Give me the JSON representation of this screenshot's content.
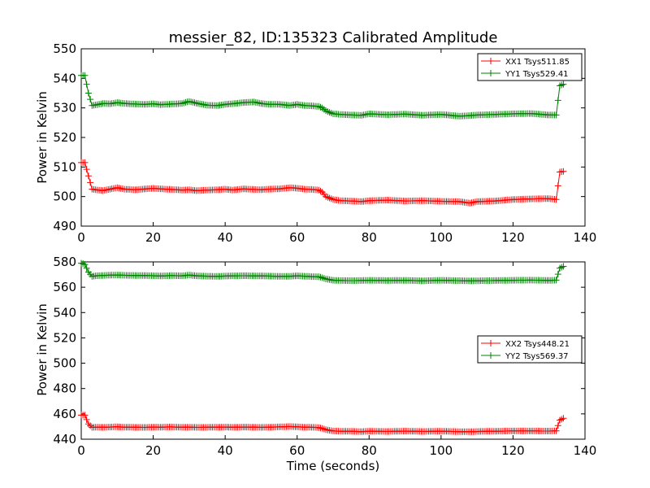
{
  "chart_data": [
    {
      "type": "line",
      "title": "messier_82, ID:135323 Calibrated Amplitude",
      "xlabel": "",
      "ylabel": "Power in Kelvin",
      "xlim": [
        0,
        140
      ],
      "ylim": [
        490,
        550
      ],
      "xticks": [
        "0",
        "20",
        "40",
        "60",
        "80",
        "100",
        "120",
        "140"
      ],
      "yticks": [
        "490",
        "500",
        "510",
        "520",
        "530",
        "540",
        "550"
      ],
      "legend_position": "top-right",
      "grid": false,
      "series": [
        {
          "name": "XX1 Tsys511.85",
          "color": "#ff0000",
          "x": [
            0,
            1,
            2,
            3,
            4,
            6,
            8,
            10,
            12,
            15,
            18,
            20,
            22,
            25,
            28,
            30,
            32,
            35,
            38,
            40,
            42,
            45,
            48,
            50,
            52,
            55,
            58,
            60,
            62,
            64,
            66,
            67,
            68,
            69,
            70,
            72,
            75,
            78,
            80,
            85,
            90,
            95,
            100,
            105,
            108,
            110,
            115,
            120,
            125,
            130,
            132,
            133,
            134
          ],
          "y": [
            511.5,
            511.5,
            507,
            502.5,
            502.3,
            502,
            502.5,
            503,
            502.5,
            502.3,
            502.6,
            502.8,
            502.6,
            502.4,
            502.2,
            502.3,
            502,
            502.2,
            502.3,
            502.5,
            502.2,
            502.6,
            502.4,
            502.3,
            502.5,
            502.6,
            503,
            502.8,
            502.5,
            502.4,
            502.2,
            501.5,
            500,
            499.5,
            499,
            498.6,
            498.5,
            498.3,
            498.6,
            498.8,
            498.5,
            498.6,
            498.4,
            498.3,
            497.8,
            498.3,
            498.5,
            499,
            499.2,
            499.3,
            499,
            508.3,
            508.5
          ]
        },
        {
          "name": "YY1 Tsys529.41",
          "color": "#008000",
          "x": [
            0,
            1,
            2,
            3,
            4,
            6,
            8,
            10,
            12,
            15,
            18,
            20,
            22,
            25,
            28,
            30,
            32,
            35,
            38,
            40,
            42,
            45,
            48,
            50,
            52,
            55,
            58,
            60,
            62,
            64,
            66,
            67,
            68,
            69,
            70,
            72,
            75,
            78,
            80,
            85,
            90,
            95,
            100,
            105,
            108,
            110,
            115,
            120,
            125,
            130,
            132,
            133,
            134
          ],
          "y": [
            541,
            541,
            535,
            530.8,
            531,
            531.5,
            531.4,
            531.8,
            531.5,
            531.3,
            531.2,
            531.4,
            531.1,
            531.3,
            531.5,
            532.2,
            531.6,
            530.9,
            530.8,
            531.2,
            531.4,
            531.8,
            532,
            531.5,
            531.2,
            531.2,
            530.8,
            531.2,
            530.8,
            530.7,
            530.5,
            530,
            529,
            528.5,
            528,
            527.8,
            527.6,
            527.5,
            528,
            527.7,
            527.9,
            527.5,
            527.8,
            527.2,
            527.4,
            527.6,
            527.8,
            528,
            528.1,
            527.6,
            527.6,
            537.5,
            538
          ]
        }
      ]
    },
    {
      "type": "line",
      "title": "",
      "xlabel": "Time (seconds)",
      "ylabel": "Power in Kelvin",
      "xlim": [
        0,
        140
      ],
      "ylim": [
        440,
        580
      ],
      "xticks": [
        "0",
        "20",
        "40",
        "60",
        "80",
        "100",
        "120",
        "140"
      ],
      "yticks": [
        "440",
        "460",
        "480",
        "500",
        "520",
        "540",
        "560",
        "580"
      ],
      "legend_position": "center-right",
      "grid": false,
      "series": [
        {
          "name": "XX2 Tsys448.21",
          "color": "#ff0000",
          "x": [
            0,
            1,
            2,
            3,
            4,
            6,
            8,
            10,
            12,
            15,
            18,
            20,
            22,
            25,
            28,
            30,
            32,
            35,
            38,
            40,
            42,
            45,
            48,
            50,
            52,
            55,
            58,
            60,
            62,
            64,
            66,
            67,
            68,
            69,
            70,
            72,
            75,
            78,
            80,
            85,
            90,
            95,
            100,
            105,
            108,
            110,
            115,
            120,
            125,
            130,
            132,
            133,
            134
          ],
          "y": [
            459,
            459,
            452,
            449.3,
            449.5,
            449.4,
            449.6,
            449.8,
            449.5,
            449.4,
            449.3,
            449.6,
            449.5,
            449.7,
            449.4,
            449.5,
            449.3,
            449.4,
            449.5,
            449.6,
            449.4,
            449.6,
            449.5,
            449.3,
            449.5,
            449.7,
            450,
            449.8,
            449.5,
            449.4,
            449.2,
            448.5,
            447.5,
            447,
            446.5,
            446.3,
            446.2,
            446,
            446.3,
            446.1,
            446.4,
            446.1,
            446.3,
            446,
            445.9,
            446.1,
            446.3,
            446.5,
            446.5,
            446.4,
            446.6,
            455,
            456.5
          ]
        },
        {
          "name": "YY2 Tsys569.37",
          "color": "#008000",
          "x": [
            0,
            1,
            2,
            3,
            4,
            6,
            8,
            10,
            12,
            15,
            18,
            20,
            22,
            25,
            28,
            30,
            32,
            35,
            38,
            40,
            42,
            45,
            48,
            50,
            52,
            55,
            58,
            60,
            62,
            64,
            66,
            67,
            68,
            69,
            70,
            72,
            75,
            78,
            80,
            85,
            90,
            95,
            100,
            105,
            108,
            110,
            115,
            120,
            125,
            130,
            132,
            133,
            134
          ],
          "y": [
            579,
            578,
            572,
            568.5,
            569,
            569.3,
            569.5,
            569.6,
            569.4,
            569.3,
            569.2,
            569.1,
            568.9,
            569.2,
            569,
            569.6,
            569,
            568.7,
            568.6,
            568.8,
            569,
            569.1,
            569,
            568.9,
            568.8,
            568.6,
            568.6,
            569,
            568.7,
            568.4,
            568.3,
            567.5,
            566.5,
            566,
            565.5,
            565.3,
            565.2,
            565.3,
            565.5,
            565.3,
            565.4,
            565.1,
            565.5,
            565.2,
            565,
            565.1,
            565.3,
            565.5,
            565.6,
            565.4,
            565.6,
            575,
            576.5
          ]
        }
      ]
    }
  ]
}
